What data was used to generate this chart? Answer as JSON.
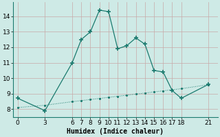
{
  "line1_x": [
    0,
    3,
    6,
    7,
    8,
    9,
    10,
    11,
    12,
    13,
    14,
    15,
    16,
    17,
    18,
    21
  ],
  "line1_y": [
    8.7,
    7.9,
    11.0,
    12.5,
    13.0,
    14.4,
    14.3,
    11.9,
    12.1,
    12.6,
    12.2,
    10.5,
    10.4,
    9.2,
    8.7,
    9.6
  ],
  "line2_x": [
    0,
    3,
    6,
    7,
    8,
    9,
    10,
    11,
    12,
    13,
    14,
    15,
    16,
    17,
    18,
    21
  ],
  "line2_y": [
    8.1,
    8.25,
    8.48,
    8.55,
    8.62,
    8.69,
    8.76,
    8.83,
    8.9,
    8.97,
    9.04,
    9.11,
    9.18,
    9.25,
    9.32,
    9.58
  ],
  "line_color": "#1a7a6e",
  "bg_color": "#ceeae6",
  "grid_color": "#b8d8d4",
  "xlabel": "Humidex (Indice chaleur)",
  "xticks": [
    0,
    3,
    6,
    7,
    8,
    9,
    10,
    11,
    12,
    13,
    14,
    15,
    16,
    17,
    18,
    21
  ],
  "yticks": [
    8,
    9,
    10,
    11,
    12,
    13,
    14
  ],
  "ylim": [
    7.5,
    14.9
  ],
  "xlim": [
    -0.5,
    22.0
  ],
  "xlabel_fontsize": 7,
  "tick_fontsize": 6.5
}
